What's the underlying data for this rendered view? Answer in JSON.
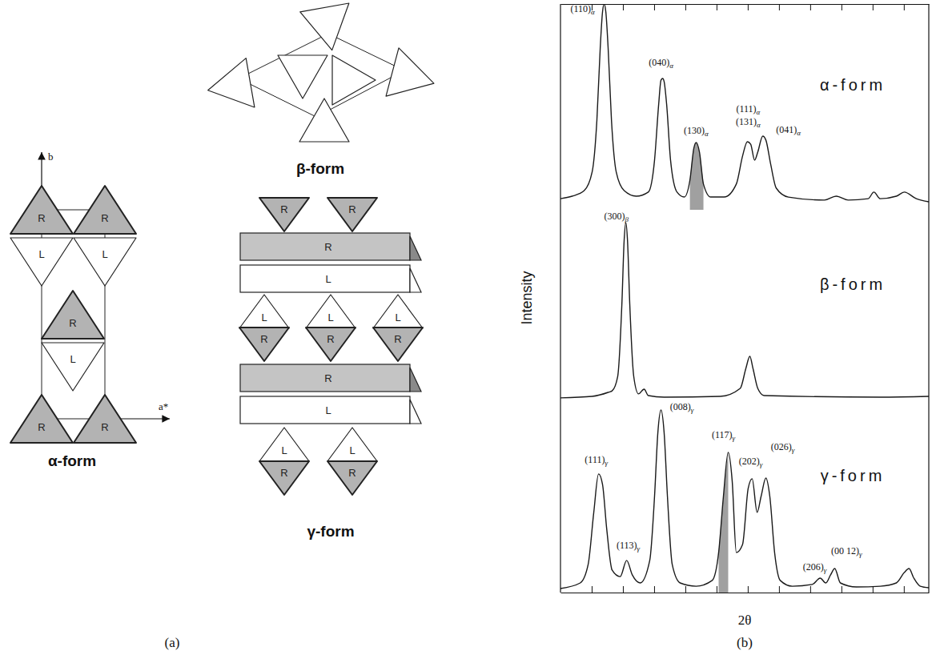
{
  "diagram": {
    "label": "(a)",
    "alpha": {
      "title": "α-form",
      "axis_labels": [
        "b",
        "a*"
      ],
      "chains": [
        "R",
        "R",
        "L",
        "L",
        "R",
        "L",
        "R",
        "R"
      ]
    },
    "beta": {
      "title": "β-form"
    },
    "gamma": {
      "title": "γ-form",
      "layers": [
        {
          "type": "chains",
          "hands": [
            "R",
            "R"
          ]
        },
        {
          "type": "sheet",
          "hand": "R"
        },
        {
          "type": "sheet",
          "hand": "L"
        },
        {
          "type": "chains",
          "hands": [
            "L",
            "L",
            "L"
          ]
        },
        {
          "type": "chains",
          "hands": [
            "R",
            "R",
            "R"
          ]
        },
        {
          "type": "sheet",
          "hand": "R"
        },
        {
          "type": "sheet",
          "hand": "L"
        },
        {
          "type": "chains",
          "hands": [
            "L",
            "L"
          ]
        },
        {
          "type": "chains",
          "hands": [
            "R",
            "R"
          ]
        }
      ]
    }
  },
  "panel_b": {
    "label": "(b)",
    "xlabel": "2θ",
    "ylabel": "Intensity"
  },
  "chart_data": [
    {
      "type": "line",
      "title": "α-form",
      "color": "#1a1a1a",
      "tick_labels": false,
      "xlim": [
        12,
        29.7
      ],
      "ylim": [
        0,
        100
      ],
      "xticks": [
        13.5,
        15,
        16.5,
        18,
        19.5,
        21,
        22.5,
        24,
        25.5,
        27,
        28.5
      ],
      "x": [
        12.0,
        12.56,
        13.14,
        13.52,
        13.75,
        13.91,
        14.02,
        14.1,
        14.18,
        14.29,
        14.45,
        14.68,
        15.06,
        15.64,
        16.22,
        16.52,
        16.72,
        16.83,
        16.91,
        16.98,
        17.1,
        17.29,
        17.6,
        17.95,
        18.22,
        18.41,
        18.52,
        18.68,
        18.87,
        19.22,
        19.87,
        20.45,
        20.75,
        20.98,
        21.14,
        21.33,
        21.48,
        21.72,
        21.87,
        22.1,
        22.37,
        22.95,
        24.68,
        25.25,
        25.83,
        26.79,
        27.06,
        27.37,
        28.14,
        28.52,
        29.1,
        29.7
      ],
      "values": [
        5.4,
        6.6,
        9.3,
        18.3,
        43.6,
        78.6,
        96.1,
        100,
        96.1,
        78.6,
        43.6,
        18.3,
        9.3,
        6.6,
        8.6,
        24.1,
        51.4,
        63,
        63.8,
        62.3,
        51.4,
        24.1,
        8.6,
        6.2,
        14.4,
        30,
        32.7,
        28,
        12.5,
        6.2,
        6.2,
        12.5,
        26.1,
        33.1,
        31.9,
        24.1,
        28,
        35.8,
        33.9,
        22.2,
        10.5,
        6.2,
        4.7,
        6.6,
        4.7,
        5.4,
        8.6,
        5.4,
        6.6,
        8.6,
        5.4,
        3.9
      ],
      "shaded_range": [
        18.06,
        19.1
      ],
      "annotations": [
        {
          "label": "(110)",
          "sub": "α",
          "x": 13.06,
          "y": 96.1
        },
        {
          "label": "(040)",
          "sub": "α",
          "x": 16.83,
          "y": 70
        },
        {
          "label": "(130)",
          "sub": "α",
          "x": 18.52,
          "y": 37
        },
        {
          "label": "(111)",
          "sub": "α",
          "x": 21.02,
          "y": 47.5
        },
        {
          "label": "(131)",
          "sub": "α",
          "x": 21.02,
          "y": 41.2
        },
        {
          "label": "(041)",
          "sub": "α",
          "x": 22.95,
          "y": 37.4
        }
      ]
    },
    {
      "type": "line",
      "title": "β-form",
      "color": "#1a1a1a",
      "tick_labels": false,
      "xlim": [
        12,
        29.7
      ],
      "ylim": [
        0,
        100
      ],
      "x": [
        12.0,
        13.52,
        14.29,
        14.48,
        14.75,
        14.95,
        15.06,
        15.14,
        15.22,
        15.33,
        15.52,
        15.75,
        16.02,
        16.22,
        16.98,
        19.68,
        20.64,
        20.91,
        21.1,
        21.25,
        21.48,
        21.79,
        27.37,
        29.7
      ],
      "values": [
        1.3,
        2.1,
        4.2,
        5.0,
        12.6,
        50.4,
        84.0,
        93.3,
        84.0,
        50.4,
        12.6,
        3.4,
        5.9,
        2.5,
        1.7,
        2.1,
        6.3,
        16.8,
        23.1,
        16.8,
        6.3,
        2.5,
        1.7,
        2.1
      ],
      "annotations": [
        {
          "label": "(300)",
          "sub": "β",
          "x": 14.68,
          "y": 95
        }
      ]
    },
    {
      "type": "line",
      "title": "γ-form",
      "color": "#1a1a1a",
      "tick_labels": false,
      "xlim": [
        12,
        29.7
      ],
      "ylim": [
        0,
        100
      ],
      "xticks": [
        13.5,
        15,
        16.5,
        18,
        19.5,
        21,
        22.5,
        24,
        25.5,
        27,
        28.5
      ],
      "x": [
        12.0,
        12.95,
        13.33,
        13.6,
        13.83,
        14.02,
        14.22,
        14.48,
        14.87,
        15.18,
        15.45,
        15.83,
        16.29,
        16.52,
        16.68,
        16.83,
        16.98,
        17.14,
        17.37,
        17.75,
        18.52,
        19.29,
        19.6,
        19.83,
        20.06,
        20.25,
        20.45,
        20.75,
        21.02,
        21.21,
        21.45,
        21.64,
        21.87,
        22.06,
        22.29,
        22.56,
        23.14,
        24.1,
        24.48,
        24.75,
        24.98,
        25.18,
        25.45,
        26.22,
        27.37,
        28.14,
        28.52,
        28.75,
        28.98,
        29.29,
        29.7
      ],
      "values": [
        2.1,
        5,
        14.6,
        41.7,
        61.7,
        56.3,
        33.3,
        11.7,
        8.3,
        16.7,
        9.2,
        5,
        16.7,
        50,
        83.3,
        95,
        83.3,
        50,
        14.6,
        5,
        3.3,
        6.3,
        20.8,
        50,
        72.9,
        58.3,
        20.8,
        25,
        54.2,
        59.2,
        41.7,
        50,
        59.6,
        50,
        20.8,
        6.3,
        3.3,
        4.2,
        7.5,
        5,
        9.2,
        12.5,
        5,
        2.9,
        3.3,
        5,
        10.4,
        12.5,
        7.5,
        3.3,
        2.5
      ],
      "shaded_range": [
        19.6,
        20.06
      ],
      "annotations": [
        {
          "label": "(111)",
          "sub": "γ",
          "x": 13.72,
          "y": 67.5
        },
        {
          "label": "(113)",
          "sub": "γ",
          "x": 15.25,
          "y": 22.9
        },
        {
          "label": "(008)",
          "sub": "γ",
          "x": 17.83,
          "y": 95
        },
        {
          "label": "(117)",
          "sub": "γ",
          "x": 19.83,
          "y": 80.4
        },
        {
          "label": "(202)",
          "sub": "γ",
          "x": 21.14,
          "y": 66.7
        },
        {
          "label": "(026)",
          "sub": "γ",
          "x": 22.68,
          "y": 74.2
        },
        {
          "label": "(206)",
          "sub": "γ",
          "x": 24.22,
          "y": 11.7
        },
        {
          "label": "(00 12)",
          "sub": "γ",
          "x": 25.75,
          "y": 20
        }
      ]
    }
  ]
}
